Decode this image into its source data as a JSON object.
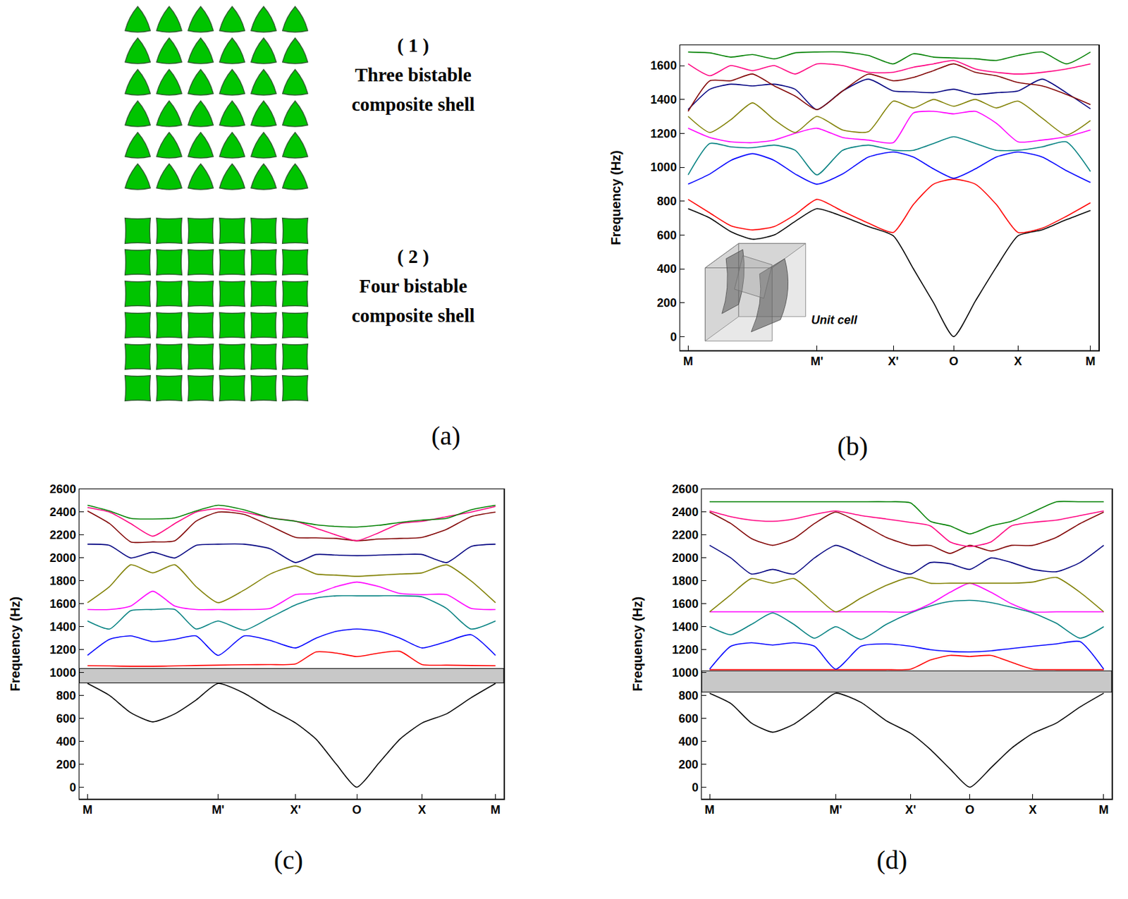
{
  "chart_data": [
    {
      "type": "line",
      "panel": "(b)",
      "ylabel": "Frequency (Hz)",
      "grid": false,
      "annotations": [
        "Unit cell"
      ],
      "x": [
        0,
        0.27,
        0.53,
        0.8,
        1.07,
        1.33,
        1.6,
        1.92,
        2.24,
        2.55,
        2.8,
        3.05,
        3.3,
        3.57,
        3.83,
        4.1,
        4.4,
        4.7,
        5.0
      ],
      "xlim": [
        -0.1,
        5.1
      ],
      "xticks": [
        {
          "value": 0,
          "label": "M"
        },
        {
          "value": 1.6,
          "label": "M'"
        },
        {
          "value": 2.55,
          "label": "X'"
        },
        {
          "value": 3.3,
          "label": "O"
        },
        {
          "value": 4.1,
          "label": "X"
        },
        {
          "value": 5.0,
          "label": "M"
        }
      ],
      "ylim": [
        -80,
        1720
      ],
      "yticks": [
        0,
        200,
        400,
        600,
        800,
        1000,
        1200,
        1400,
        1600
      ],
      "series": [
        {
          "color": "#000000",
          "values": [
            755,
            700,
            620,
            575,
            600,
            680,
            755,
            710,
            650,
            595,
            400,
            200,
            0,
            210,
            410,
            595,
            630,
            690,
            745
          ]
        },
        {
          "color": "#ff0000",
          "values": [
            810,
            730,
            655,
            630,
            650,
            720,
            810,
            740,
            670,
            615,
            780,
            900,
            930,
            900,
            780,
            615,
            640,
            710,
            790
          ]
        },
        {
          "color": "#0000ff",
          "values": [
            900,
            960,
            1040,
            1080,
            1040,
            960,
            900,
            960,
            1060,
            1090,
            1060,
            990,
            935,
            990,
            1060,
            1090,
            1060,
            980,
            910
          ]
        },
        {
          "color": "#008080",
          "values": [
            955,
            1140,
            1120,
            1115,
            1130,
            1100,
            955,
            1100,
            1130,
            1100,
            1100,
            1140,
            1180,
            1140,
            1100,
            1100,
            1120,
            1150,
            975
          ]
        },
        {
          "color": "#ff00ff",
          "values": [
            1230,
            1175,
            1150,
            1145,
            1160,
            1200,
            1230,
            1175,
            1160,
            1145,
            1320,
            1330,
            1315,
            1330,
            1260,
            1150,
            1160,
            1180,
            1220
          ]
        },
        {
          "color": "#808000",
          "values": [
            1300,
            1205,
            1280,
            1380,
            1280,
            1205,
            1300,
            1220,
            1210,
            1390,
            1350,
            1400,
            1360,
            1400,
            1350,
            1390,
            1290,
            1190,
            1275
          ]
        },
        {
          "color": "#000080",
          "values": [
            1340,
            1460,
            1490,
            1480,
            1490,
            1460,
            1340,
            1450,
            1520,
            1450,
            1445,
            1440,
            1460,
            1430,
            1440,
            1450,
            1520,
            1440,
            1345
          ]
        },
        {
          "color": "#800000",
          "values": [
            1330,
            1510,
            1510,
            1550,
            1480,
            1420,
            1340,
            1450,
            1550,
            1510,
            1530,
            1570,
            1610,
            1560,
            1540,
            1500,
            1480,
            1430,
            1370
          ]
        },
        {
          "color": "#ff0080",
          "values": [
            1610,
            1540,
            1600,
            1570,
            1600,
            1550,
            1610,
            1600,
            1560,
            1560,
            1590,
            1610,
            1630,
            1580,
            1560,
            1550,
            1560,
            1580,
            1610
          ]
        },
        {
          "color": "#008000",
          "values": [
            1680,
            1675,
            1650,
            1665,
            1640,
            1675,
            1680,
            1680,
            1660,
            1610,
            1670,
            1650,
            1645,
            1640,
            1630,
            1660,
            1680,
            1610,
            1680
          ]
        }
      ]
    },
    {
      "type": "line",
      "panel": "(c)",
      "ylabel": "Frequency (Hz)",
      "grid": false,
      "band_gap": [
        910,
        1035
      ],
      "x": [
        0,
        0.27,
        0.53,
        0.8,
        1.07,
        1.33,
        1.6,
        1.92,
        2.24,
        2.55,
        2.8,
        3.05,
        3.3,
        3.57,
        3.83,
        4.1,
        4.4,
        4.7,
        5.0
      ],
      "xlim": [
        -0.1,
        5.1
      ],
      "xticks": [
        {
          "value": 0,
          "label": "M"
        },
        {
          "value": 1.6,
          "label": "M'"
        },
        {
          "value": 2.55,
          "label": "X'"
        },
        {
          "value": 3.3,
          "label": "O"
        },
        {
          "value": 4.1,
          "label": "X"
        },
        {
          "value": 5.0,
          "label": "M"
        }
      ],
      "ylim": [
        -100,
        2600
      ],
      "yticks": [
        0,
        200,
        400,
        600,
        800,
        1000,
        1200,
        1400,
        1600,
        1800,
        2000,
        2200,
        2400,
        2600
      ],
      "series": [
        {
          "color": "#000000",
          "values": [
            905,
            800,
            650,
            570,
            640,
            760,
            905,
            820,
            680,
            560,
            420,
            200,
            0,
            210,
            420,
            560,
            640,
            780,
            905
          ]
        },
        {
          "color": "#ff0000",
          "values": [
            1060,
            1058,
            1055,
            1055,
            1058,
            1062,
            1065,
            1068,
            1070,
            1075,
            1180,
            1170,
            1140,
            1170,
            1185,
            1070,
            1065,
            1062,
            1060
          ]
        },
        {
          "color": "#0000ff",
          "values": [
            1150,
            1290,
            1320,
            1270,
            1290,
            1320,
            1150,
            1320,
            1280,
            1215,
            1300,
            1360,
            1380,
            1360,
            1300,
            1215,
            1270,
            1330,
            1150
          ]
        },
        {
          "color": "#008080",
          "values": [
            1450,
            1380,
            1540,
            1550,
            1550,
            1380,
            1450,
            1370,
            1480,
            1590,
            1650,
            1670,
            1670,
            1670,
            1670,
            1660,
            1560,
            1380,
            1450
          ]
        },
        {
          "color": "#ff00ff",
          "values": [
            1550,
            1550,
            1580,
            1710,
            1580,
            1550,
            1550,
            1550,
            1560,
            1680,
            1690,
            1750,
            1790,
            1750,
            1690,
            1680,
            1680,
            1560,
            1550
          ]
        },
        {
          "color": "#808000",
          "values": [
            1610,
            1750,
            1940,
            1870,
            1940,
            1750,
            1610,
            1720,
            1860,
            1930,
            1860,
            1850,
            1840,
            1850,
            1860,
            1870,
            1940,
            1800,
            1610
          ]
        },
        {
          "color": "#000080",
          "values": [
            2120,
            2110,
            2000,
            2050,
            2000,
            2110,
            2120,
            2120,
            2080,
            1960,
            2030,
            2025,
            2020,
            2025,
            2030,
            2030,
            1960,
            2100,
            2120
          ]
        },
        {
          "color": "#800000",
          "values": [
            2410,
            2300,
            2140,
            2140,
            2150,
            2320,
            2400,
            2380,
            2280,
            2180,
            2175,
            2170,
            2150,
            2165,
            2170,
            2180,
            2250,
            2360,
            2400
          ]
        },
        {
          "color": "#ff0080",
          "values": [
            2440,
            2400,
            2300,
            2190,
            2300,
            2400,
            2430,
            2400,
            2350,
            2320,
            2260,
            2200,
            2150,
            2220,
            2300,
            2320,
            2360,
            2400,
            2450
          ]
        },
        {
          "color": "#008000",
          "values": [
            2460,
            2410,
            2345,
            2340,
            2350,
            2410,
            2460,
            2420,
            2350,
            2320,
            2290,
            2275,
            2270,
            2285,
            2310,
            2330,
            2345,
            2420,
            2460
          ]
        }
      ]
    },
    {
      "type": "line",
      "panel": "(d)",
      "ylabel": "Frequency (Hz)",
      "grid": false,
      "band_gap": [
        830,
        1015
      ],
      "x": [
        0,
        0.27,
        0.53,
        0.8,
        1.07,
        1.33,
        1.6,
        1.92,
        2.24,
        2.55,
        2.8,
        3.05,
        3.3,
        3.57,
        3.83,
        4.1,
        4.4,
        4.7,
        5.0
      ],
      "xlim": [
        -0.1,
        5.1
      ],
      "xticks": [
        {
          "value": 0,
          "label": "M"
        },
        {
          "value": 1.6,
          "label": "M'"
        },
        {
          "value": 2.55,
          "label": "X'"
        },
        {
          "value": 3.3,
          "label": "O"
        },
        {
          "value": 4.1,
          "label": "X"
        },
        {
          "value": 5.0,
          "label": "M"
        }
      ],
      "ylim": [
        -100,
        2600
      ],
      "yticks": [
        0,
        200,
        400,
        600,
        800,
        1000,
        1200,
        1400,
        1600,
        1800,
        2000,
        2200,
        2400,
        2600
      ],
      "series": [
        {
          "color": "#000000",
          "values": [
            820,
            730,
            560,
            480,
            550,
            680,
            820,
            740,
            580,
            470,
            330,
            160,
            0,
            170,
            340,
            470,
            560,
            700,
            820
          ]
        },
        {
          "color": "#ff0000",
          "values": [
            1025,
            1025,
            1025,
            1025,
            1025,
            1025,
            1025,
            1025,
            1025,
            1030,
            1110,
            1150,
            1140,
            1150,
            1090,
            1030,
            1025,
            1025,
            1025
          ]
        },
        {
          "color": "#0000ff",
          "values": [
            1030,
            1230,
            1260,
            1240,
            1260,
            1230,
            1030,
            1230,
            1250,
            1230,
            1200,
            1185,
            1180,
            1190,
            1210,
            1230,
            1250,
            1270,
            1030
          ]
        },
        {
          "color": "#008080",
          "values": [
            1400,
            1330,
            1420,
            1520,
            1420,
            1300,
            1400,
            1290,
            1420,
            1520,
            1580,
            1620,
            1630,
            1610,
            1570,
            1520,
            1430,
            1300,
            1400
          ]
        },
        {
          "color": "#ff00ff",
          "values": [
            1530,
            1530,
            1530,
            1530,
            1530,
            1530,
            1530,
            1530,
            1530,
            1530,
            1600,
            1700,
            1780,
            1700,
            1600,
            1530,
            1530,
            1530,
            1530
          ]
        },
        {
          "color": "#808000",
          "values": [
            1530,
            1680,
            1820,
            1780,
            1820,
            1680,
            1530,
            1650,
            1760,
            1830,
            1780,
            1780,
            1780,
            1780,
            1780,
            1790,
            1830,
            1700,
            1530
          ]
        },
        {
          "color": "#000080",
          "values": [
            2110,
            2000,
            1860,
            1900,
            1860,
            2000,
            2110,
            2020,
            1920,
            1860,
            1960,
            1950,
            1900,
            2000,
            1960,
            1900,
            1880,
            1960,
            2110
          ]
        },
        {
          "color": "#800000",
          "values": [
            2400,
            2300,
            2170,
            2110,
            2170,
            2300,
            2400,
            2300,
            2180,
            2110,
            2110,
            2040,
            2110,
            2060,
            2110,
            2110,
            2180,
            2300,
            2400
          ]
        },
        {
          "color": "#ff0080",
          "values": [
            2410,
            2360,
            2330,
            2320,
            2340,
            2380,
            2410,
            2370,
            2340,
            2310,
            2280,
            2140,
            2100,
            2140,
            2280,
            2310,
            2330,
            2370,
            2410
          ]
        },
        {
          "color": "#008000",
          "values": [
            2490,
            2490,
            2490,
            2490,
            2490,
            2490,
            2490,
            2490,
            2490,
            2480,
            2320,
            2280,
            2210,
            2280,
            2320,
            2400,
            2490,
            2490,
            2490
          ]
        }
      ]
    }
  ],
  "diagram": {
    "panel": "(a)",
    "groups": [
      {
        "number": "( 1 )",
        "title": "Three bistable composite shell",
        "shape": "triangle",
        "rows": 6,
        "columns": 6
      },
      {
        "number": "( 2 )",
        "title": "Four bistable composite shell",
        "shape": "square",
        "rows": 6,
        "columns": 6
      }
    ]
  }
}
